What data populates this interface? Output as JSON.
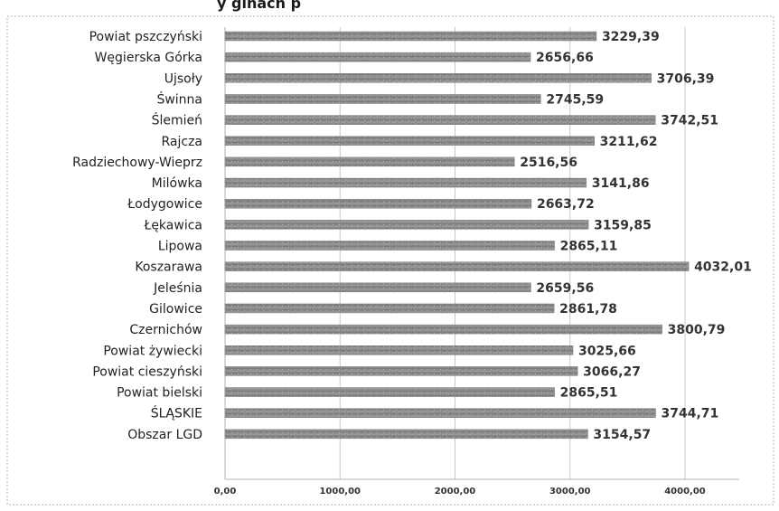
{
  "header": {
    "title_fragment": "y ginach p"
  },
  "chart_data": {
    "type": "bar",
    "orientation": "horizontal",
    "title": "",
    "xlabel": "",
    "ylabel": "",
    "xlim": [
      0,
      4000
    ],
    "categories": [
      "Powiat pszczyński",
      "Węgierska Górka",
      "Ujsoły",
      "Świnna",
      "Ślemień",
      "Rajcza",
      "Radziechowy-Wieprz",
      "Milówka",
      "Łodygowice",
      "Łękawica",
      "Lipowa",
      "Koszarawa",
      "Jeleśnia",
      "Gilowice",
      "Czernichów",
      "Powiat żywiecki",
      "Powiat cieszyński",
      "Powiat bielski",
      "ŚLĄSKIE",
      "Obszar LGD"
    ],
    "values": [
      3229.39,
      2656.66,
      3706.39,
      2745.59,
      3742.51,
      3211.62,
      2516.56,
      3141.86,
      2663.72,
      3159.85,
      2865.11,
      4032.01,
      2659.56,
      2861.78,
      3800.79,
      3025.66,
      3066.27,
      2865.51,
      3744.71,
      3154.57
    ],
    "value_labels": [
      "3229,39",
      "2656,66",
      "3706,39",
      "2745,59",
      "3742,51",
      "3211,62",
      "2516,56",
      "3141,86",
      "2663,72",
      "3159,85",
      "2865,11",
      "4032,01",
      "2659,56",
      "2861,78",
      "3800,79",
      "3025,66",
      "3066,27",
      "2865,51",
      "3744,71",
      "3154,57"
    ],
    "x_ticks": [
      0,
      1000,
      2000,
      3000,
      4000
    ],
    "x_tick_labels": [
      "0,00",
      "1000,00",
      "2000,00",
      "3000,00",
      "4000,00"
    ],
    "grid": true,
    "bar_color": "#8c8c8c",
    "gridline_color": "#c8c8c8",
    "frame_color": "#b0b0b0",
    "legend": "none"
  }
}
